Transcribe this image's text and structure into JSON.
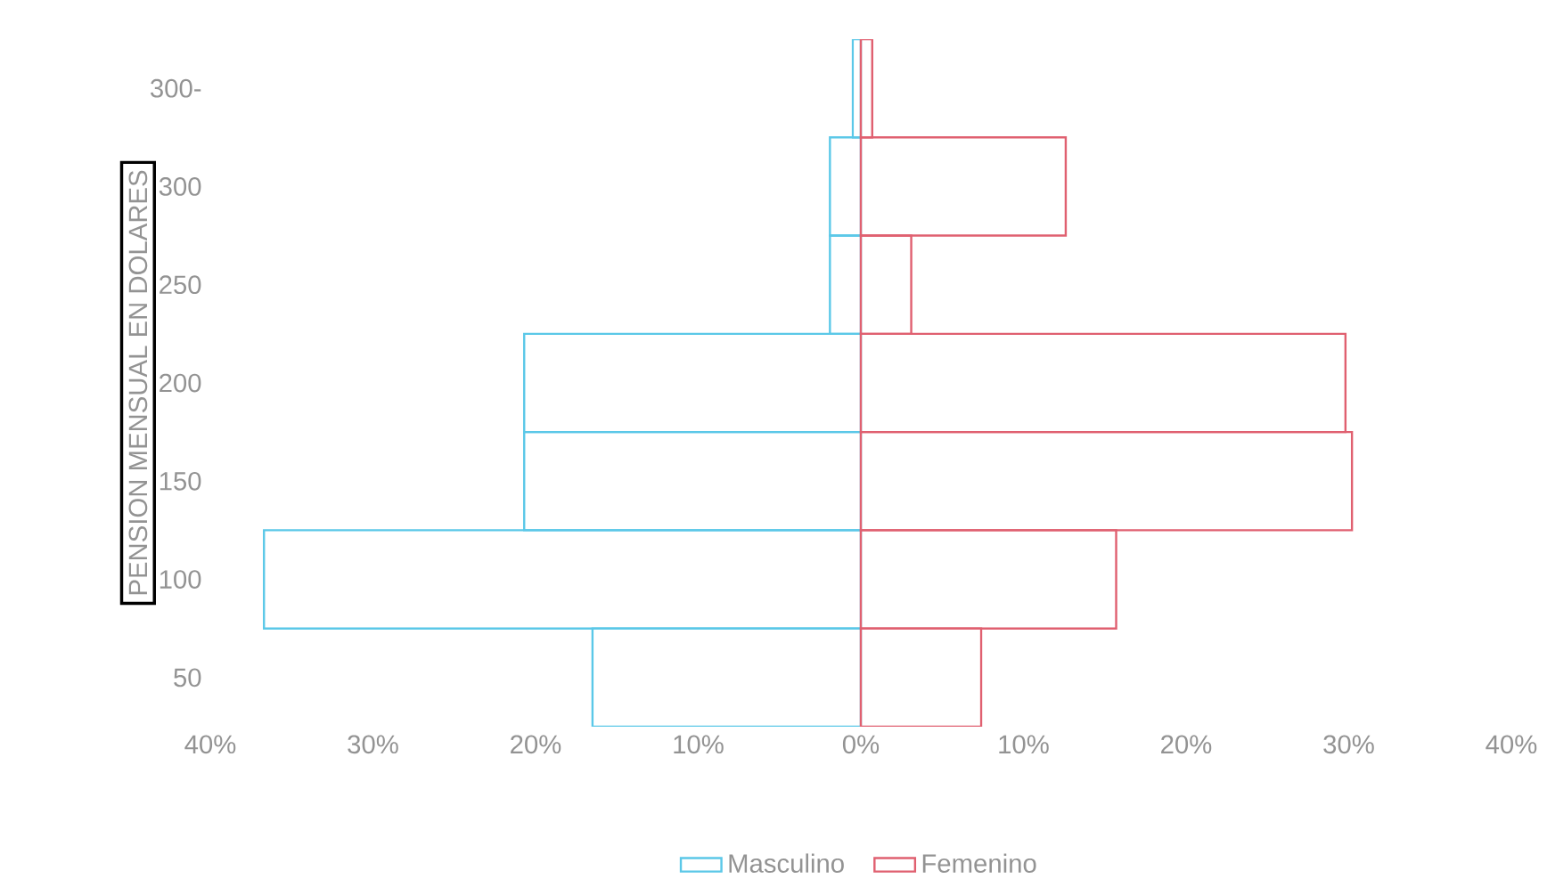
{
  "chart_data": {
    "type": "bar",
    "orientation": "horizontal",
    "ylabel": "PENSION MENSUAL EN DOLARES",
    "categories": [
      "300-",
      "300",
      "250",
      "200",
      "150",
      "100",
      "50"
    ],
    "series": [
      {
        "name": "Masculino",
        "color": "#5bc8e8",
        "values": [
          -0.5,
          -1.9,
          -1.9,
          -20.7,
          -20.7,
          -36.7,
          -16.5
        ]
      },
      {
        "name": "Femenino",
        "color": "#e06070",
        "values": [
          0.7,
          12.6,
          3.1,
          29.8,
          30.2,
          15.7,
          7.4
        ]
      }
    ],
    "xlim": [
      -40,
      40
    ],
    "xticks": [
      {
        "value": -40,
        "label": "40%"
      },
      {
        "value": -30,
        "label": "30%"
      },
      {
        "value": -20,
        "label": "20%"
      },
      {
        "value": -10,
        "label": "10%"
      },
      {
        "value": 0,
        "label": "0%"
      },
      {
        "value": 10,
        "label": "10%"
      },
      {
        "value": 20,
        "label": "20%"
      },
      {
        "value": 30,
        "label": "30%"
      },
      {
        "value": 40,
        "label": "40%"
      }
    ],
    "legend": "bottom",
    "stacked": true
  }
}
